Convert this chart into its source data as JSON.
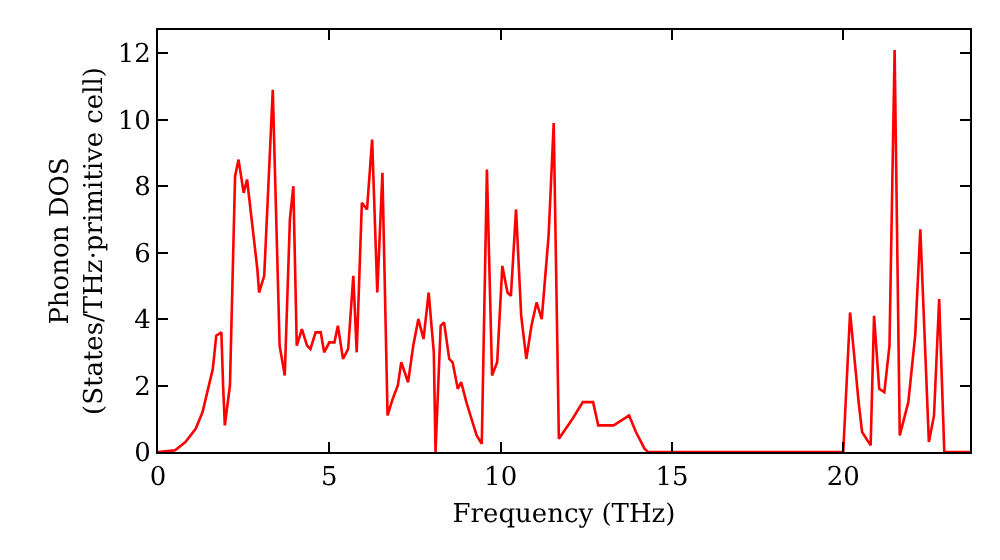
{
  "chart_data": {
    "type": "line",
    "xlabel": "Frequency (THz)",
    "ylabel": "Phonon DOS\n(States/THz·primitive cell)",
    "x": [
      0,
      0.5,
      0.8,
      1.1,
      1.3,
      1.6,
      1.7,
      1.85,
      1.9,
      1.95,
      2.1,
      2.25,
      2.35,
      2.5,
      2.6,
      2.9,
      2.95,
      3.1,
      3.35,
      3.55,
      3.7,
      3.85,
      3.95,
      4.05,
      4.2,
      4.35,
      4.45,
      4.6,
      4.75,
      4.85,
      5.0,
      5.15,
      5.25,
      5.4,
      5.55,
      5.7,
      5.8,
      5.95,
      6.1,
      6.25,
      6.4,
      6.55,
      6.7,
      6.85,
      7.0,
      7.1,
      7.3,
      7.45,
      7.6,
      7.75,
      7.9,
      8.05,
      8.1,
      8.25,
      8.35,
      8.5,
      8.6,
      8.75,
      8.85,
      9.0,
      9.15,
      9.3,
      9.45,
      9.6,
      9.75,
      9.9,
      10.05,
      10.2,
      10.3,
      10.45,
      10.6,
      10.75,
      10.9,
      11.05,
      11.2,
      11.4,
      11.55,
      11.7,
      11.9,
      12.1,
      12.4,
      12.7,
      12.85,
      13.3,
      13.75,
      13.95,
      14.2,
      14.3,
      20,
      20.2,
      20.45,
      20.55,
      20.8,
      20.9,
      21.05,
      21.2,
      21.35,
      21.5,
      21.65,
      21.9,
      22.1,
      22.25,
      22.5,
      22.65,
      22.8,
      22.95,
      23.7
    ],
    "series": [
      {
        "color": "#ff0000",
        "values": [
          0,
          0.05,
          0.3,
          0.7,
          1.2,
          2.5,
          3.5,
          3.6,
          2.0,
          0.8,
          2.0,
          8.3,
          8.8,
          7.8,
          8.2,
          5.5,
          4.8,
          5.3,
          10.9,
          3.2,
          2.3,
          7.0,
          8.0,
          3.2,
          3.7,
          3.2,
          3.1,
          3.6,
          3.6,
          3.0,
          3.3,
          3.3,
          3.8,
          2.8,
          3.1,
          5.3,
          3.0,
          7.5,
          7.3,
          9.4,
          4.8,
          8.4,
          1.1,
          1.6,
          2.0,
          2.7,
          2.1,
          3.2,
          4.0,
          3.4,
          4.8,
          3.0,
          0,
          3.8,
          3.9,
          2.8,
          2.7,
          1.9,
          2.1,
          1.5,
          1.0,
          0.5,
          0.25,
          8.5,
          2.3,
          2.7,
          5.6,
          4.8,
          4.7,
          7.3,
          4.1,
          2.8,
          3.8,
          4.5,
          4.0,
          6.5,
          9.9,
          0.4,
          0.7,
          1.0,
          1.5,
          1.5,
          0.8,
          0.8,
          1.1,
          0.6,
          0.1,
          0,
          0,
          4.2,
          1.5,
          0.6,
          0.2,
          4.1,
          1.9,
          1.8,
          3.2,
          12.1,
          0.5,
          1.5,
          3.5,
          6.7,
          0.3,
          1.1,
          4.6,
          0,
          0
        ]
      }
    ],
    "xlim": [
      0,
      23.7
    ],
    "ylim": [
      0,
      12.7
    ],
    "xticks": [
      0,
      5,
      10,
      15,
      20
    ],
    "yticks": [
      0,
      2,
      4,
      6,
      8,
      10,
      12
    ],
    "marker": "none",
    "line_style": "solid"
  }
}
